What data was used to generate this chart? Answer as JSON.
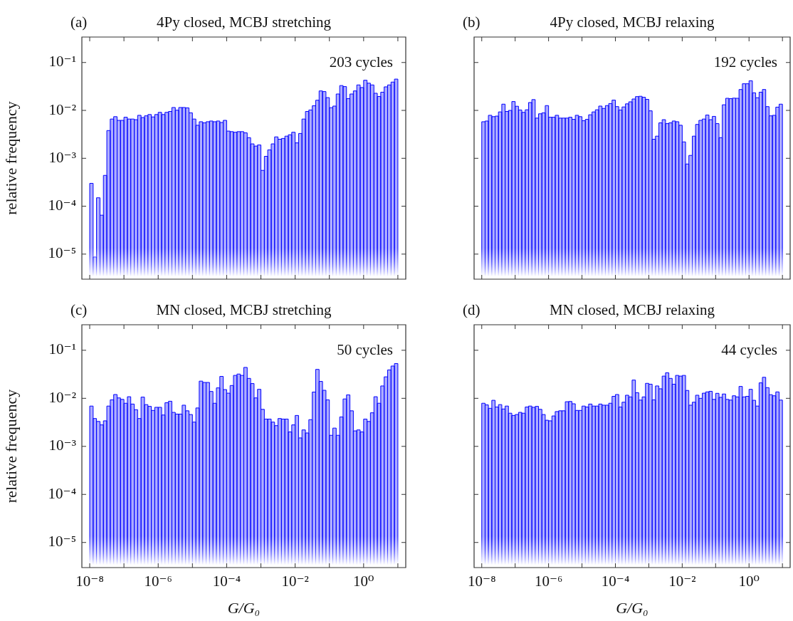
{
  "chart_data": [
    {
      "type": "histogram",
      "title": "4Py closed, MCBJ stretching",
      "ylabel": "relative frequency",
      "annotations": [
        "(a)",
        "203 cycles"
      ],
      "color": "#0000ff",
      "log": "xy",
      "grid": false,
      "tick_labels": "y",
      "xlim": [
        5.9e-09,
        17
      ],
      "ylim": [
        3e-06,
        0.34
      ],
      "xticks": [
        {
          "value": 1e-08,
          "label": null
        },
        {
          "value": 1e-07,
          "label": null
        },
        {
          "value": 1e-06,
          "label": null
        },
        {
          "value": 1e-05,
          "label": null
        },
        {
          "value": 0.0001,
          "label": null
        },
        {
          "value": 0.001,
          "label": null
        },
        {
          "value": 0.01,
          "label": null
        },
        {
          "value": 0.1,
          "label": null
        },
        {
          "value": 1,
          "label": null
        },
        {
          "value": 10,
          "label": null
        }
      ],
      "yticks": [
        {
          "value": 1e-05,
          "label": "10⁻⁵"
        },
        {
          "value": 0.0001,
          "label": "10⁻⁴"
        },
        {
          "value": 0.001,
          "label": "10⁻³"
        },
        {
          "value": 0.01,
          "label": "10⁻²"
        },
        {
          "value": 0.1,
          "label": "10⁻¹"
        }
      ],
      "bins": [
        1e-08,
        1.26e-08,
        1.58e-08,
        2e-08,
        2.51e-08,
        3.16e-08,
        3.98e-08,
        5.01e-08,
        6.31e-08,
        7.94e-08,
        1e-07,
        1.26e-07,
        1.58e-07,
        2e-07,
        2.51e-07,
        3.16e-07,
        3.98e-07,
        5.01e-07,
        6.31e-07,
        7.94e-07,
        1e-06,
        1.26e-06,
        1.58e-06,
        2e-06,
        2.51e-06,
        3.16e-06,
        3.98e-06,
        5.01e-06,
        6.31e-06,
        7.94e-06,
        1e-05,
        1.26e-05,
        1.58e-05,
        2e-05,
        2.51e-05,
        3.16e-05,
        3.98e-05,
        5.01e-05,
        6.31e-05,
        7.94e-05,
        0.0001,
        0.000126,
        0.000158,
        0.0002,
        0.000251,
        0.000316,
        0.000398,
        0.000501,
        0.000631,
        0.000794,
        0.001,
        0.00126,
        0.00158,
        0.002,
        0.00251,
        0.00316,
        0.00398,
        0.00501,
        0.00631,
        0.00794,
        0.01,
        0.0126,
        0.0158,
        0.02,
        0.0251,
        0.0316,
        0.0398,
        0.0501,
        0.0631,
        0.0794,
        0.1,
        0.126,
        0.158,
        0.2,
        0.251,
        0.316,
        0.398,
        0.501,
        0.631,
        0.794,
        1,
        1.26,
        1.58,
        2,
        2.51,
        3.16,
        3.98,
        5.01,
        6.31,
        7.94,
        10
      ],
      "values": [
        0.0003,
        8.7e-06,
        0.00015,
        6.5e-05,
        0.00044,
        0.0038,
        0.0066,
        0.0074,
        0.0062,
        0.0062,
        0.0072,
        0.0066,
        0.0066,
        0.0064,
        0.0079,
        0.0071,
        0.0077,
        0.0082,
        0.0073,
        0.0082,
        0.0091,
        0.0082,
        0.0091,
        0.0095,
        0.0115,
        0.0101,
        0.0115,
        0.0115,
        0.0113,
        0.0089,
        0.0066,
        0.0049,
        0.0058,
        0.0055,
        0.0058,
        0.006,
        0.0058,
        0.006,
        0.0056,
        0.0062,
        0.0037,
        0.0036,
        0.0035,
        0.0036,
        0.0036,
        0.0034,
        0.0027,
        0.002,
        0.0018,
        0.0019,
        0.00056,
        0.0011,
        0.0015,
        0.002,
        0.0028,
        0.0025,
        0.0026,
        0.0029,
        0.0031,
        0.0035,
        0.0021,
        0.0033,
        0.0066,
        0.0095,
        0.0102,
        0.0125,
        0.0163,
        0.0255,
        0.0247,
        0.0185,
        0.0114,
        0.0123,
        0.022,
        0.033,
        0.0314,
        0.0176,
        0.022,
        0.0255,
        0.034,
        0.03,
        0.0426,
        0.037,
        0.034,
        0.0228,
        0.0195,
        0.024,
        0.031,
        0.034,
        0.039,
        0.045
      ]
    },
    {
      "type": "histogram",
      "title": "4Py closed, MCBJ relaxing",
      "annotations": [
        "(b)",
        "192 cycles"
      ],
      "color": "#0000ff",
      "log": "xy",
      "grid": false,
      "tick_labels": false,
      "xlim": [
        5.9e-09,
        17
      ],
      "ylim": [
        3e-06,
        0.34
      ],
      "xticks": [
        {
          "value": 1e-08,
          "label": null
        },
        {
          "value": 1e-07,
          "label": null
        },
        {
          "value": 1e-06,
          "label": null
        },
        {
          "value": 1e-05,
          "label": null
        },
        {
          "value": 0.0001,
          "label": null
        },
        {
          "value": 0.001,
          "label": null
        },
        {
          "value": 0.01,
          "label": null
        },
        {
          "value": 0.1,
          "label": null
        },
        {
          "value": 1,
          "label": null
        },
        {
          "value": 10,
          "label": null
        }
      ],
      "yticks": [
        {
          "value": 1e-05,
          "label": null
        },
        {
          "value": 0.0001,
          "label": null
        },
        {
          "value": 0.001,
          "label": null
        },
        {
          "value": 0.01,
          "label": null
        },
        {
          "value": 0.1,
          "label": null
        }
      ],
      "bins": [
        1e-08,
        1.26e-08,
        1.58e-08,
        2e-08,
        2.51e-08,
        3.16e-08,
        3.98e-08,
        5.01e-08,
        6.31e-08,
        7.94e-08,
        1e-07,
        1.26e-07,
        1.58e-07,
        2e-07,
        2.51e-07,
        3.16e-07,
        3.98e-07,
        5.01e-07,
        6.31e-07,
        7.94e-07,
        1e-06,
        1.26e-06,
        1.58e-06,
        2e-06,
        2.51e-06,
        3.16e-06,
        3.98e-06,
        5.01e-06,
        6.31e-06,
        7.94e-06,
        1e-05,
        1.26e-05,
        1.58e-05,
        2e-05,
        2.51e-05,
        3.16e-05,
        3.98e-05,
        5.01e-05,
        6.31e-05,
        7.94e-05,
        0.0001,
        0.000126,
        0.000158,
        0.0002,
        0.000251,
        0.000316,
        0.000398,
        0.000501,
        0.000631,
        0.000794,
        0.001,
        0.00126,
        0.00158,
        0.002,
        0.00251,
        0.00316,
        0.00398,
        0.00501,
        0.00631,
        0.00794,
        0.01,
        0.0126,
        0.0158,
        0.02,
        0.0251,
        0.0316,
        0.0398,
        0.0501,
        0.0631,
        0.0794,
        0.1,
        0.126,
        0.158,
        0.2,
        0.251,
        0.316,
        0.398,
        0.501,
        0.631,
        0.794,
        1,
        1.26,
        1.58,
        2,
        2.51,
        3.16,
        3.98,
        5.01,
        6.31,
        7.94,
        10
      ],
      "values": [
        0.0058,
        0.006,
        0.0079,
        0.0074,
        0.0076,
        0.0093,
        0.0135,
        0.0095,
        0.01,
        0.0153,
        0.0122,
        0.0102,
        0.0091,
        0.0103,
        0.0146,
        0.0168,
        0.0069,
        0.0085,
        0.0089,
        0.0126,
        0.0072,
        0.0072,
        0.0079,
        0.0069,
        0.0069,
        0.0069,
        0.0072,
        0.0065,
        0.0079,
        0.0074,
        0.0061,
        0.0065,
        0.0081,
        0.0093,
        0.0103,
        0.0123,
        0.011,
        0.0126,
        0.0139,
        0.0164,
        0.012,
        0.0102,
        0.0118,
        0.0137,
        0.0151,
        0.0173,
        0.0194,
        0.0197,
        0.0188,
        0.017,
        0.0098,
        0.0025,
        0.0029,
        0.0055,
        0.0064,
        0.0053,
        0.0055,
        0.006,
        0.0058,
        0.0049,
        0.0022,
        0.00076,
        0.00115,
        0.0029,
        0.0051,
        0.0062,
        0.0066,
        0.008,
        0.0064,
        0.0075,
        0.0053,
        0.0027,
        0.0131,
        0.0179,
        0.0176,
        0.018,
        0.0179,
        0.0273,
        0.036,
        0.036,
        0.0416,
        0.0233,
        0.0184,
        0.024,
        0.0273,
        0.012,
        0.0077,
        0.0079,
        0.0117,
        0.0135
      ]
    },
    {
      "type": "histogram",
      "title": "MN closed, MCBJ stretching",
      "xlabel": "G/G₀",
      "ylabel": "relative frequency",
      "annotations": [
        "(c)",
        "50 cycles"
      ],
      "color": "#0000ff",
      "log": "xy",
      "grid": false,
      "xlim": [
        5.9e-09,
        17
      ],
      "ylim": [
        3e-06,
        0.34
      ],
      "xticks": [
        {
          "value": 1e-08,
          "label": "10⁻⁸"
        },
        {
          "value": 1e-07,
          "label": null
        },
        {
          "value": 1e-06,
          "label": "10⁻⁶"
        },
        {
          "value": 1e-05,
          "label": null
        },
        {
          "value": 0.0001,
          "label": "10⁻⁴"
        },
        {
          "value": 0.001,
          "label": null
        },
        {
          "value": 0.01,
          "label": "10⁻²"
        },
        {
          "value": 0.1,
          "label": null
        },
        {
          "value": 1,
          "label": "10⁰"
        },
        {
          "value": 10,
          "label": null
        }
      ],
      "yticks": [
        {
          "value": 1e-05,
          "label": "10⁻⁵"
        },
        {
          "value": 0.0001,
          "label": "10⁻⁴"
        },
        {
          "value": 0.001,
          "label": "10⁻³"
        },
        {
          "value": 0.01,
          "label": "10⁻²"
        },
        {
          "value": 0.1,
          "label": "10⁻¹"
        }
      ],
      "bins": [
        1e-08,
        1.26e-08,
        1.58e-08,
        2e-08,
        2.51e-08,
        3.16e-08,
        3.98e-08,
        5.01e-08,
        6.31e-08,
        7.94e-08,
        1e-07,
        1.26e-07,
        1.58e-07,
        2e-07,
        2.51e-07,
        3.16e-07,
        3.98e-07,
        5.01e-07,
        6.31e-07,
        7.94e-07,
        1e-06,
        1.26e-06,
        1.58e-06,
        2e-06,
        2.51e-06,
        3.16e-06,
        3.98e-06,
        5.01e-06,
        6.31e-06,
        7.94e-06,
        1e-05,
        1.26e-05,
        1.58e-05,
        2e-05,
        2.51e-05,
        3.16e-05,
        3.98e-05,
        5.01e-05,
        6.31e-05,
        7.94e-05,
        0.0001,
        0.000126,
        0.000158,
        0.0002,
        0.000251,
        0.000316,
        0.000398,
        0.000501,
        0.000631,
        0.000794,
        0.001,
        0.00126,
        0.00158,
        0.002,
        0.00251,
        0.00316,
        0.00398,
        0.00501,
        0.00631,
        0.00794,
        0.01,
        0.0126,
        0.0158,
        0.02,
        0.0251,
        0.0316,
        0.0398,
        0.0501,
        0.0631,
        0.0794,
        0.1,
        0.126,
        0.158,
        0.2,
        0.251,
        0.316,
        0.398,
        0.501,
        0.631,
        0.794,
        1,
        1.26,
        1.58,
        2,
        2.51,
        3.16,
        3.98,
        5.01,
        6.31,
        7.94,
        10
      ],
      "values": [
        0.0069,
        0.0038,
        0.0033,
        0.0028,
        0.0034,
        0.0069,
        0.0093,
        0.012,
        0.0102,
        0.0095,
        0.0079,
        0.0108,
        0.0076,
        0.0058,
        0.0038,
        0.0106,
        0.0074,
        0.0068,
        0.0056,
        0.0065,
        0.0065,
        0.0045,
        0.0081,
        0.0087,
        0.0051,
        0.0047,
        0.0047,
        0.0072,
        0.0055,
        0.0046,
        0.0032,
        0.0063,
        0.0228,
        0.0214,
        0.0214,
        0.0139,
        0.0079,
        0.0165,
        0.0286,
        0.0152,
        0.0128,
        0.0185,
        0.03,
        0.032,
        0.03,
        0.044,
        0.026,
        0.0203,
        0.0102,
        0.0154,
        0.0059,
        0.0037,
        0.0037,
        0.0032,
        0.0027,
        0.0038,
        0.0037,
        0.0037,
        0.002,
        0.0028,
        0.0044,
        0.0015,
        0.0022,
        0.0019,
        0.0036,
        0.0135,
        0.04,
        0.0225,
        0.0147,
        0.0093,
        0.0017,
        0.0024,
        0.0017,
        0.0041,
        0.0097,
        0.0118,
        0.0055,
        0.0021,
        0.0022,
        0.002,
        0.0037,
        0.0033,
        0.005,
        0.0108,
        0.0079,
        0.0181,
        0.028,
        0.039,
        0.047,
        0.053
      ]
    },
    {
      "type": "histogram",
      "title": "MN closed, MCBJ relaxing",
      "xlabel": "G/G₀",
      "annotations": [
        "(d)",
        "44 cycles"
      ],
      "color": "#0000ff",
      "log": "xy",
      "grid": false,
      "tick_labels": "x",
      "xlim": [
        5.9e-09,
        17
      ],
      "ylim": [
        3e-06,
        0.34
      ],
      "xticks": [
        {
          "value": 1e-08,
          "label": "10⁻⁸"
        },
        {
          "value": 1e-07,
          "label": null
        },
        {
          "value": 1e-06,
          "label": "10⁻⁶"
        },
        {
          "value": 1e-05,
          "label": null
        },
        {
          "value": 0.0001,
          "label": "10⁻⁴"
        },
        {
          "value": 0.001,
          "label": null
        },
        {
          "value": 0.01,
          "label": "10⁻²"
        },
        {
          "value": 0.1,
          "label": null
        },
        {
          "value": 1,
          "label": "10⁰"
        },
        {
          "value": 10,
          "label": null
        }
      ],
      "yticks": [
        {
          "value": 1e-05,
          "label": null
        },
        {
          "value": 0.0001,
          "label": null
        },
        {
          "value": 0.001,
          "label": null
        },
        {
          "value": 0.01,
          "label": null
        },
        {
          "value": 0.1,
          "label": null
        }
      ],
      "bins": [
        1e-08,
        1.26e-08,
        1.58e-08,
        2e-08,
        2.51e-08,
        3.16e-08,
        3.98e-08,
        5.01e-08,
        6.31e-08,
        7.94e-08,
        1e-07,
        1.26e-07,
        1.58e-07,
        2e-07,
        2.51e-07,
        3.16e-07,
        3.98e-07,
        5.01e-07,
        6.31e-07,
        7.94e-07,
        1e-06,
        1.26e-06,
        1.58e-06,
        2e-06,
        2.51e-06,
        3.16e-06,
        3.98e-06,
        5.01e-06,
        6.31e-06,
        7.94e-06,
        1e-05,
        1.26e-05,
        1.58e-05,
        2e-05,
        2.51e-05,
        3.16e-05,
        3.98e-05,
        5.01e-05,
        6.31e-05,
        7.94e-05,
        0.0001,
        0.000126,
        0.000158,
        0.0002,
        0.000251,
        0.000316,
        0.000398,
        0.000501,
        0.000631,
        0.000794,
        0.001,
        0.00126,
        0.00158,
        0.002,
        0.00251,
        0.00316,
        0.00398,
        0.00501,
        0.00631,
        0.00794,
        0.01,
        0.0126,
        0.0158,
        0.02,
        0.0251,
        0.0316,
        0.0398,
        0.0501,
        0.0631,
        0.0794,
        0.1,
        0.126,
        0.158,
        0.2,
        0.251,
        0.316,
        0.398,
        0.501,
        0.631,
        0.794,
        1,
        1.26,
        1.58,
        2,
        2.51,
        3.16,
        3.98,
        5.01,
        6.31,
        7.94,
        10
      ],
      "values": [
        0.0079,
        0.0073,
        0.0062,
        0.0091,
        0.0066,
        0.0074,
        0.006,
        0.0069,
        0.0049,
        0.0044,
        0.0046,
        0.0051,
        0.0049,
        0.0066,
        0.0069,
        0.0065,
        0.0068,
        0.0059,
        0.0046,
        0.0035,
        0.0034,
        0.0043,
        0.0053,
        0.0055,
        0.0055,
        0.0085,
        0.0086,
        0.0077,
        0.0056,
        0.0056,
        0.0069,
        0.0066,
        0.0076,
        0.0069,
        0.0069,
        0.0076,
        0.0072,
        0.0072,
        0.0079,
        0.011,
        0.012,
        0.0066,
        0.0083,
        0.0116,
        0.0107,
        0.024,
        0.0131,
        0.0092,
        0.0107,
        0.0205,
        0.0197,
        0.0093,
        0.0181,
        0.0158,
        0.029,
        0.034,
        0.026,
        0.0197,
        0.03,
        0.029,
        0.03,
        0.0146,
        0.0072,
        0.0083,
        0.0116,
        0.01,
        0.0128,
        0.0136,
        0.014,
        0.0095,
        0.0127,
        0.0105,
        0.0123,
        0.0095,
        0.0092,
        0.0113,
        0.0107,
        0.0177,
        0.0107,
        0.011,
        0.0154,
        0.0091,
        0.0069,
        0.021,
        0.0274,
        0.0167,
        0.0119,
        0.0113,
        0.0136,
        0.0092
      ]
    }
  ]
}
